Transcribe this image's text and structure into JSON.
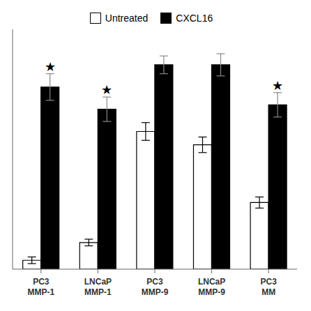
{
  "chart_data": {
    "type": "bar",
    "categories": [
      "PC3\nMMP-1",
      "LNCaP\nMMP-1",
      "PC3\nMMP-9",
      "LNCaP\nMMP-9",
      "PC3\nMM"
    ],
    "series": [
      {
        "name": "Untreated",
        "color": "#ffffff",
        "values": [
          0.04,
          0.12,
          0.62,
          0.56,
          0.3
        ],
        "errors": [
          0.015,
          0.015,
          0.04,
          0.035,
          0.025
        ]
      },
      {
        "name": "CXCL16",
        "color": "#000000",
        "values": [
          0.82,
          0.72,
          0.92,
          0.92,
          0.74
        ],
        "errors": [
          0.06,
          0.055,
          0.04,
          0.05,
          0.055
        ]
      }
    ],
    "annotations": [
      {
        "text": "★",
        "category": "PC3\nMMP-1",
        "series": "CXCL16"
      },
      {
        "text": "★",
        "category": "LNCaP\nMMP-1",
        "series": "CXCL16"
      },
      {
        "text": "★",
        "category": "PC3\nMM",
        "series": "CXCL16"
      }
    ],
    "ylim": [
      0,
      1.08
    ],
    "yticks": [],
    "tick_labels": "x",
    "legend": "top"
  }
}
